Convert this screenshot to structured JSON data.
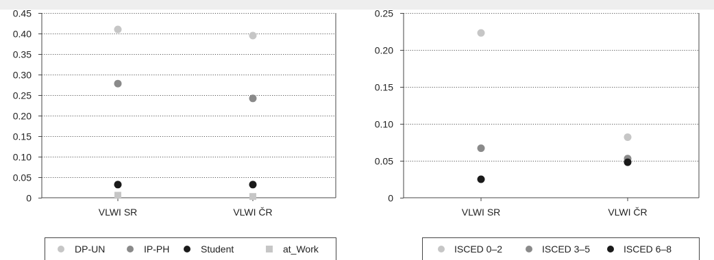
{
  "chart_data": [
    {
      "type": "scatter",
      "categories": [
        "VLWI SR",
        "VLWI ČR"
      ],
      "ylim": [
        0,
        0.45
      ],
      "yticks": [
        "0",
        "0.05",
        "0.10",
        "0.15",
        "0.20",
        "0.25",
        "0.30",
        "0.35",
        "0.40",
        "0.45"
      ],
      "ytick_values": [
        0,
        0.05,
        0.1,
        0.15,
        0.2,
        0.25,
        0.3,
        0.35,
        0.4,
        0.45
      ],
      "grid": true,
      "legend_position": "bottom",
      "series": [
        {
          "name": "DP-UN",
          "marker": "circle",
          "color": "#c6c6c6",
          "values": [
            0.41,
            0.395
          ]
        },
        {
          "name": "IP-PH",
          "marker": "circle",
          "color": "#8a8a8a",
          "values": [
            0.278,
            0.242
          ]
        },
        {
          "name": "Student",
          "marker": "circle",
          "color": "#1a1a1a",
          "values": [
            0.032,
            0.032
          ]
        },
        {
          "name": "at_Work",
          "marker": "square",
          "color": "#c6c6c6",
          "values": [
            0.006,
            0.003
          ]
        }
      ]
    },
    {
      "type": "scatter",
      "categories": [
        "VLWI SR",
        "VLWI ČR"
      ],
      "ylim": [
        0,
        0.25
      ],
      "yticks": [
        "0",
        "0.05",
        "0.10",
        "0.15",
        "0.20",
        "0.25"
      ],
      "ytick_values": [
        0,
        0.05,
        0.1,
        0.15,
        0.2,
        0.25
      ],
      "grid": true,
      "legend_position": "bottom",
      "series": [
        {
          "name": "ISCED 0–2",
          "marker": "circle",
          "color": "#c6c6c6",
          "values": [
            0.223,
            0.082
          ]
        },
        {
          "name": "ISCED 3–5",
          "marker": "circle",
          "color": "#8a8a8a",
          "values": [
            0.067,
            0.053
          ]
        },
        {
          "name": "ISCED 6–8",
          "marker": "circle",
          "color": "#1a1a1a",
          "values": [
            0.025,
            0.048
          ]
        }
      ]
    }
  ]
}
